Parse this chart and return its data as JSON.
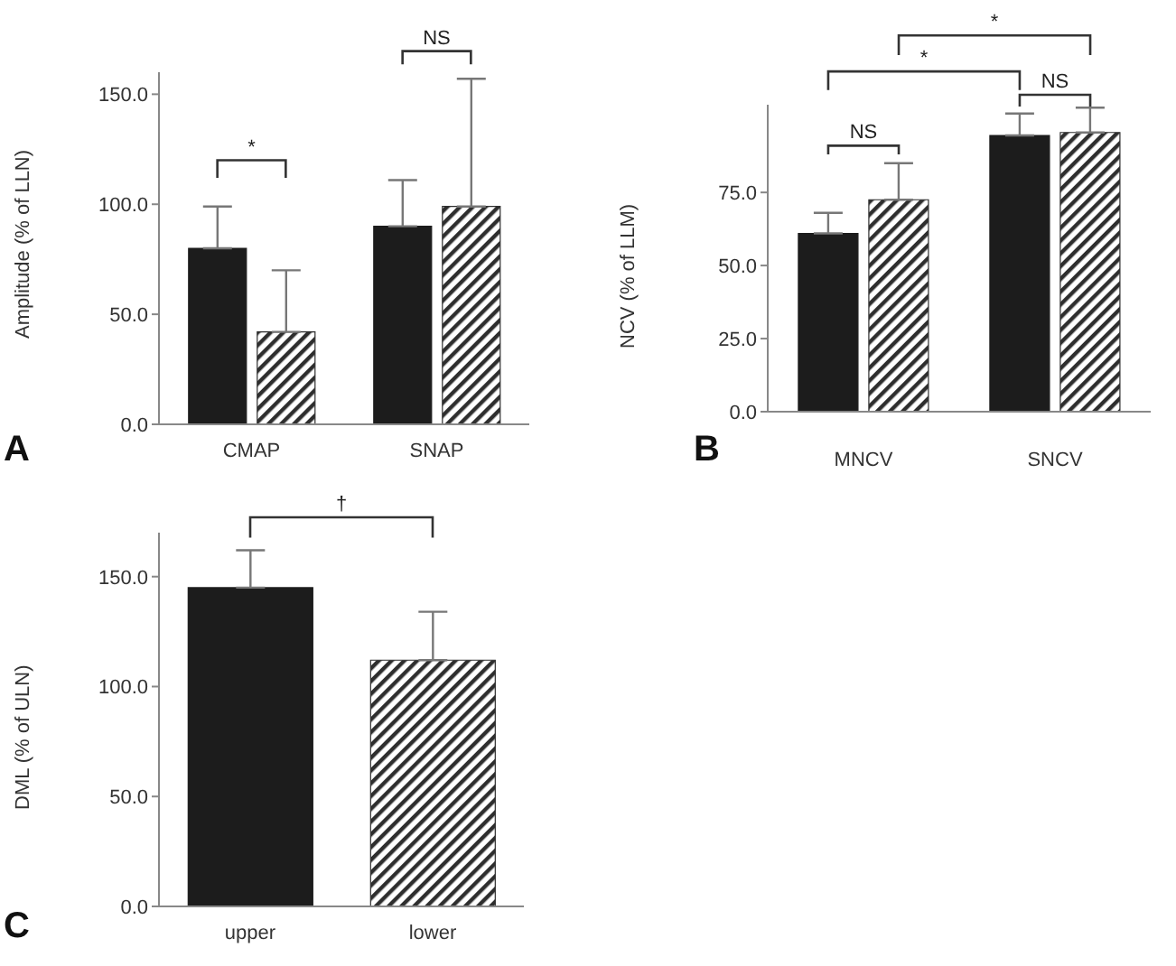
{
  "chart_data": [
    {
      "type": "bar",
      "ylabel": "Amplitude (% of LLN)",
      "categories": [
        "CMAP",
        "SNAP"
      ],
      "ylim": [
        0,
        160
      ],
      "yticks": [
        {
          "value": 0,
          "label": "0.0"
        },
        {
          "value": 50,
          "label": "50.0"
        },
        {
          "value": 100,
          "label": "100.0"
        },
        {
          "value": 150,
          "label": "150.0"
        }
      ],
      "grid": false,
      "legend": false,
      "annotations": [
        "*",
        "NS",
        "A"
      ],
      "series": [
        {
          "color": "#1c1c1c",
          "values": [
            80,
            90
          ],
          "errors": [
            [
              80,
              99
            ],
            [
              90,
              111
            ]
          ]
        },
        {
          "color": "#2e2e2e",
          "values": [
            42,
            99
          ],
          "errors": [
            [
              42,
              70
            ],
            [
              99,
              157
            ]
          ]
        }
      ]
    },
    {
      "type": "bar",
      "ylabel": "NCV (% of LLM)",
      "categories": [
        "MNCV",
        "SNCV"
      ],
      "ylim": [
        0,
        105
      ],
      "yticks": [
        {
          "value": 0,
          "label": "0.0"
        },
        {
          "value": 25,
          "label": "25.0"
        },
        {
          "value": 50,
          "label": "50.0"
        },
        {
          "value": 75,
          "label": "75.0"
        }
      ],
      "grid": false,
      "legend": false,
      "annotations": [
        "NS",
        "NS",
        "*",
        "*",
        "B"
      ],
      "series": [
        {
          "color": "#1c1c1c",
          "values": [
            61,
            94.5
          ],
          "errors": [
            [
              61,
              68
            ],
            [
              94.5,
              102
            ]
          ]
        },
        {
          "color": "#2e2e2e",
          "values": [
            72.5,
            95.5
          ],
          "errors": [
            [
              72.5,
              85
            ],
            [
              95.5,
              104
            ]
          ]
        }
      ]
    },
    {
      "type": "bar",
      "ylabel": "DML (% of ULN)",
      "categories": [
        "upper",
        "lower"
      ],
      "ylim": [
        0,
        170
      ],
      "yticks": [
        {
          "value": 0,
          "label": "0.0"
        },
        {
          "value": 50,
          "label": "50.0"
        },
        {
          "value": 100,
          "label": "100.0"
        },
        {
          "value": 150,
          "label": "150.0"
        }
      ],
      "grid": false,
      "legend": false,
      "annotations": [
        "†",
        "C"
      ],
      "colors": [
        "#1c1c1c",
        "#2e2e2e"
      ],
      "values": [
        145,
        112
      ],
      "errors": [
        [
          145,
          162
        ],
        [
          112,
          134
        ]
      ]
    }
  ]
}
